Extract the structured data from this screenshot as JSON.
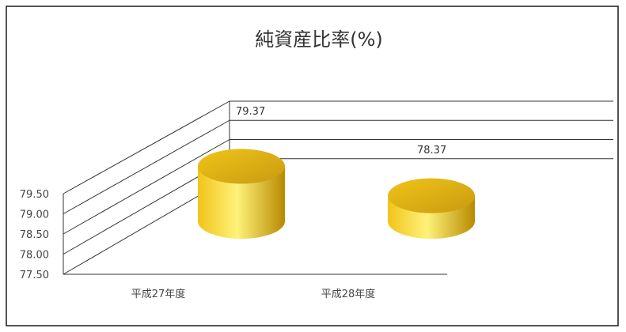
{
  "chart_data": {
    "type": "bar",
    "title": "純資産比率(%)",
    "categories": [
      "平成27年度",
      "平成28年度"
    ],
    "values": [
      79.37,
      78.37
    ],
    "data_labels": [
      "79.37",
      "78.37"
    ],
    "ylim": [
      77.5,
      79.5
    ],
    "yticks": [
      "79.50",
      "79.00",
      "78.50",
      "78.00",
      "77.50"
    ],
    "xlabel": "",
    "ylabel": "",
    "grid": true,
    "legend": "none",
    "bar_style": "3d-cylinder",
    "colors": {
      "bar_light": "#fff27a",
      "bar_mid": "#f0c419",
      "bar_dark": "#b88a00",
      "top_dark": "#c99a10",
      "grid": "#333333",
      "frame": "#1a1a1a"
    }
  }
}
